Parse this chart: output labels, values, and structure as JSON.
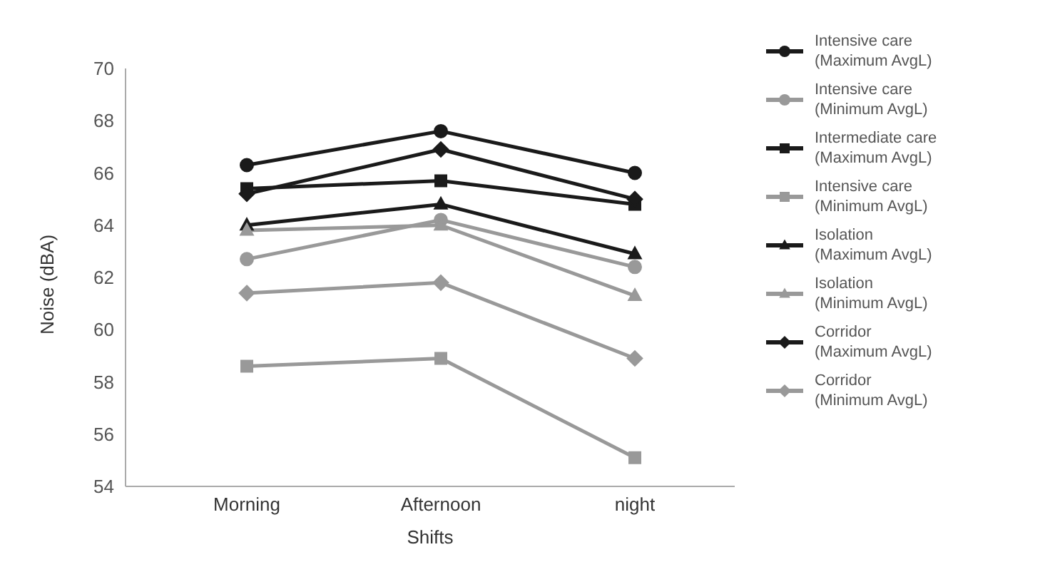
{
  "chart_data": {
    "type": "line",
    "xlabel": "Shifts",
    "ylabel": "Noise (dBA)",
    "categories": [
      "Morning",
      "Afternoon",
      "night"
    ],
    "ylim": [
      54,
      70
    ],
    "yticks": [
      54,
      56,
      58,
      60,
      62,
      64,
      66,
      68,
      70
    ],
    "grid": false,
    "legend": "right",
    "line_style": "solid",
    "series": [
      {
        "name": "Intensive care\n(Maximum AvgL)",
        "color": "#1a1a1a",
        "marker": "circle",
        "values": [
          66.3,
          67.6,
          66.0
        ]
      },
      {
        "name": "Intensive care\n(Minimum AvgL)",
        "color": "#999999",
        "marker": "circle",
        "values": [
          62.7,
          64.2,
          62.4
        ]
      },
      {
        "name": "Intermediate care\n(Maximum AvgL)",
        "color": "#1a1a1a",
        "marker": "square",
        "values": [
          65.4,
          65.7,
          64.8
        ]
      },
      {
        "name": "Intensive care\n(Minimum AvgL)",
        "color": "#999999",
        "marker": "square",
        "values": [
          58.6,
          58.9,
          55.1
        ]
      },
      {
        "name": "Isolation\n(Maximum AvgL)",
        "color": "#1a1a1a",
        "marker": "triangle",
        "values": [
          64.0,
          64.8,
          62.9
        ]
      },
      {
        "name": "Isolation\n(Minimum AvgL)",
        "color": "#999999",
        "marker": "triangle",
        "values": [
          63.8,
          64.0,
          61.3
        ]
      },
      {
        "name": "Corridor\n(Maximum AvgL)",
        "color": "#1a1a1a",
        "marker": "diamond",
        "values": [
          65.2,
          66.9,
          65.0
        ]
      },
      {
        "name": "Corridor\n(Minimum AvgL)",
        "color": "#999999",
        "marker": "diamond",
        "values": [
          61.4,
          61.8,
          58.9
        ]
      }
    ]
  }
}
